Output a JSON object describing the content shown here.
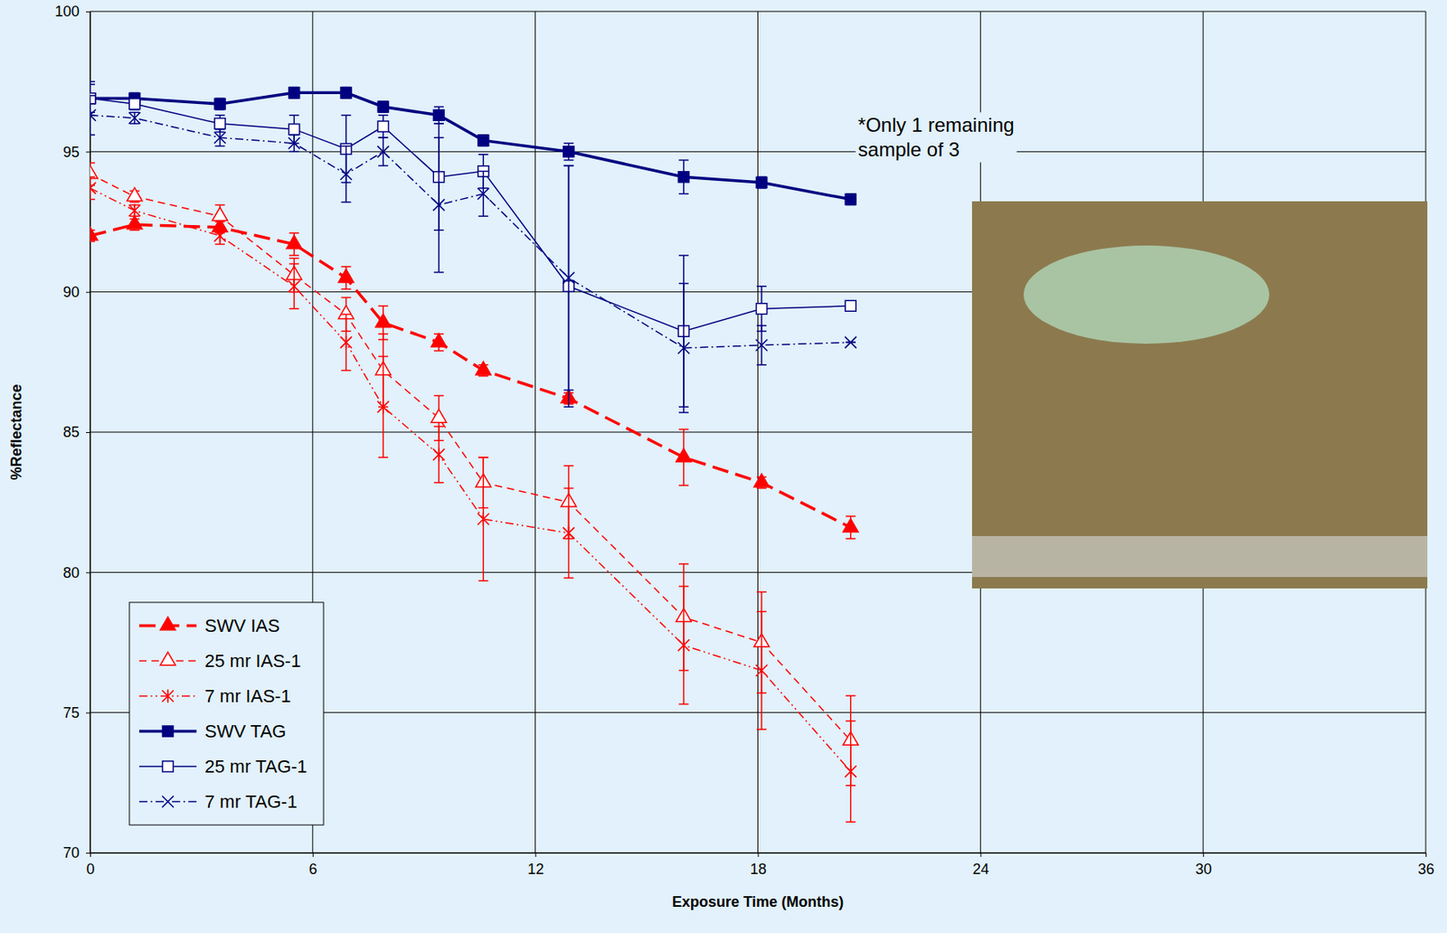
{
  "chart_data": {
    "type": "line",
    "x_label": "Exposure Time (Months)",
    "y_label": "%Reflectance",
    "x": [
      0,
      1.2,
      3.5,
      5.5,
      6.9,
      7.9,
      9.4,
      10.6,
      12.9,
      16,
      18.1,
      20.5
    ],
    "xlim": [
      0,
      36
    ],
    "xticks": [
      0,
      6,
      12,
      18,
      24,
      30,
      36
    ],
    "ylim": [
      70,
      100
    ],
    "yticks": [
      70,
      75,
      80,
      85,
      90,
      95,
      100
    ],
    "grid": true,
    "legend": "lower left",
    "series": [
      {
        "name": "SWV IAS",
        "color": "#ff0000",
        "marker": "triangle-filled",
        "line_style": "long-dash",
        "values": [
          92.0,
          92.4,
          92.3,
          91.7,
          90.5,
          88.9,
          88.2,
          87.2,
          86.2,
          84.1,
          83.2,
          81.6
        ],
        "errors": [
          0.2,
          0.2,
          0.2,
          0.4,
          0.4,
          0.6,
          0.3,
          0.2,
          0.2,
          1.0,
          0.2,
          0.4
        ]
      },
      {
        "name": "25 mr IAS-1",
        "color": "#ff0000",
        "marker": "triangle-open",
        "line_style": "dash",
        "values": [
          94.2,
          93.4,
          92.7,
          90.6,
          89.2,
          87.2,
          85.5,
          83.2,
          82.5,
          78.4,
          77.5,
          74.0
        ],
        "errors": [
          0.4,
          0.2,
          0.4,
          0.6,
          0.6,
          1.3,
          0.8,
          0.9,
          1.3,
          1.9,
          1.8,
          1.6
        ]
      },
      {
        "name": "7 mr IAS-1",
        "color": "#ff0000",
        "marker": "asterisk",
        "line_style": "dash-dot-dot",
        "values": [
          93.7,
          92.9,
          92.0,
          90.2,
          88.2,
          85.9,
          84.2,
          81.9,
          81.4,
          77.4,
          76.5,
          72.9
        ],
        "errors": [
          0.4,
          0.2,
          0.3,
          0.8,
          1.0,
          1.8,
          1.0,
          2.2,
          1.6,
          2.1,
          2.1,
          1.8
        ]
      },
      {
        "name": "SWV TAG",
        "color": "#000080",
        "marker": "square-filled",
        "line_style": "solid",
        "values": [
          96.9,
          96.9,
          96.7,
          97.1,
          97.1,
          96.6,
          96.3,
          95.4,
          95.0,
          94.1,
          93.9,
          93.3
        ],
        "errors": [
          0.6,
          0.2,
          0.2,
          0.2,
          0.2,
          0.2,
          0.3,
          0.2,
          0.3,
          0.6,
          0.2,
          0.2
        ]
      },
      {
        "name": "25 mr TAG-1",
        "color": "#000080",
        "marker": "square-open",
        "line_style": "solid",
        "values": [
          96.9,
          96.7,
          96.0,
          95.8,
          95.1,
          95.9,
          94.1,
          94.3,
          90.2,
          88.6,
          89.4,
          89.5
        ],
        "errors": [
          0.5,
          0.2,
          0.3,
          0.5,
          1.2,
          0.4,
          1.9,
          0.6,
          4.3,
          2.7,
          0.8,
          0
        ]
      },
      {
        "name": "7 mr TAG-1",
        "color": "#000080",
        "marker": "x",
        "line_style": "dash-dot",
        "values": [
          96.3,
          96.2,
          95.5,
          95.3,
          94.2,
          95.0,
          93.1,
          93.5,
          90.5,
          88.0,
          88.1,
          88.2
        ],
        "errors": [
          0.7,
          0.2,
          0.3,
          0.3,
          1.0,
          0.5,
          2.4,
          0.8,
          4.0,
          2.3,
          0.7,
          0
        ]
      }
    ],
    "annotations": [
      {
        "text": "*Only 1 remaining sample of 3",
        "x": 20.7,
        "y": 95.7
      }
    ]
  }
}
